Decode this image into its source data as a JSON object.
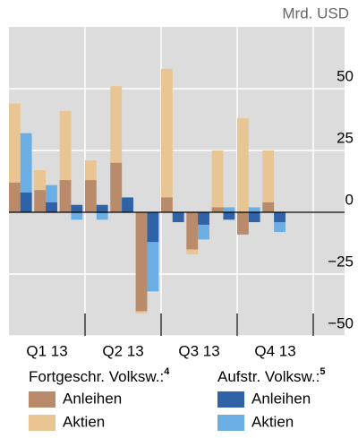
{
  "chart_data": {
    "type": "bar",
    "unit_label": "Mrd. USD",
    "categories": [
      null,
      "Q1 13",
      null,
      null,
      "Q2 13",
      null,
      null,
      "Q3 13",
      null,
      null,
      "Q4 13",
      null
    ],
    "series": [
      {
        "name": "Anleihen",
        "color": "#b98b6b",
        "values": [
          12,
          9,
          13,
          13,
          20,
          -40,
          6,
          -15,
          2,
          -9,
          4,
          null
        ]
      },
      {
        "name": "Aktien",
        "color": "#e8c593",
        "values": [
          44,
          17,
          41,
          21,
          51,
          -41,
          58,
          -17,
          25,
          38,
          25,
          null
        ]
      },
      {
        "name": "Anleihen",
        "color": "#2f62a6",
        "values": [
          8,
          4,
          3,
          3,
          6,
          -12,
          -4,
          -5,
          -3,
          -4,
          -4,
          null
        ]
      },
      {
        "name": "Aktien",
        "color": "#6aaee4",
        "values": [
          32,
          11,
          -3,
          -3,
          5,
          -32,
          -2,
          -11,
          2,
          2,
          -8,
          null
        ]
      }
    ],
    "legend_groups": [
      {
        "title": "Fortgeschr. Volksw.:",
        "footnote": "4"
      },
      {
        "title": "Aufstr. Volksw.:",
        "footnote": "5"
      }
    ],
    "ylim": [
      -50,
      75
    ],
    "yticks": [
      {
        "value": -50,
        "label": "−50"
      },
      {
        "value": -25,
        "label": "−25"
      },
      0,
      25,
      50
    ],
    "grid": true
  }
}
